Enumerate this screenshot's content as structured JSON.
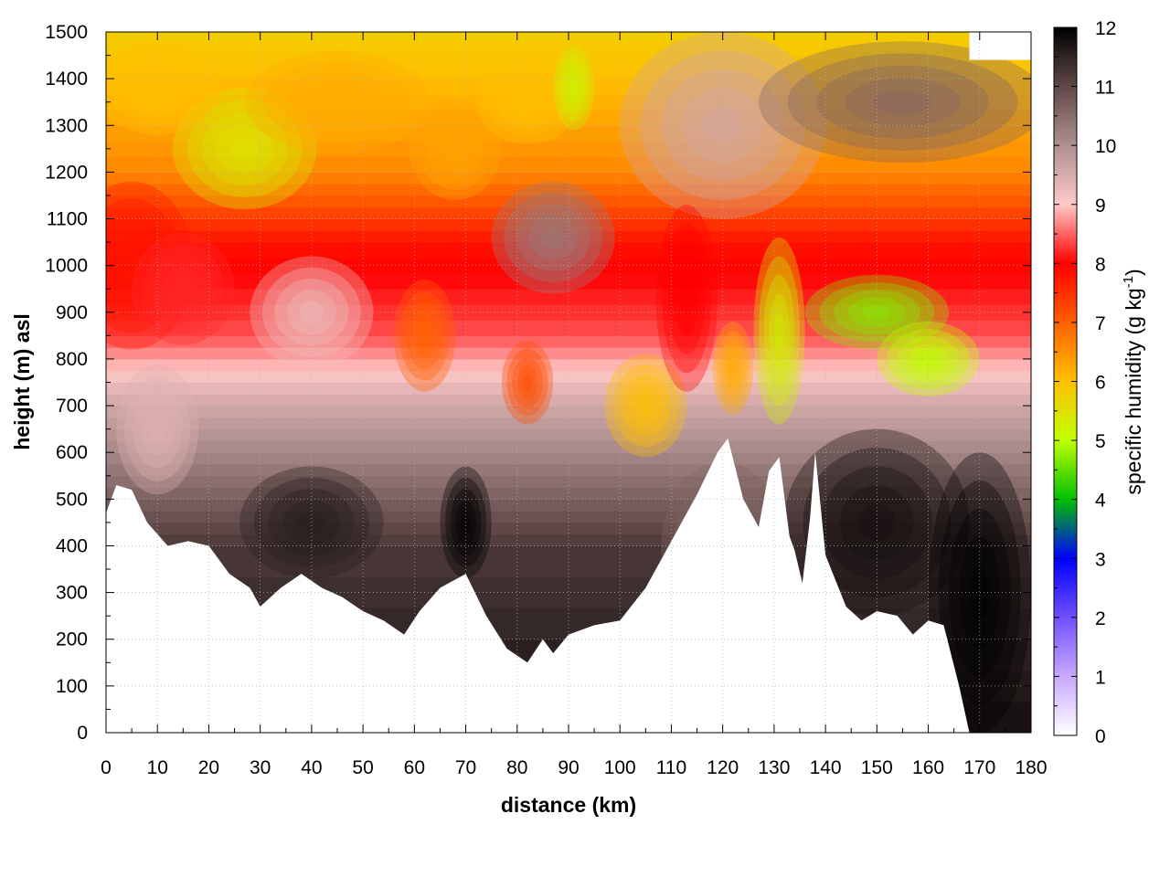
{
  "chart_data": {
    "type": "heatmap",
    "title": "",
    "xlabel": "distance (km)",
    "ylabel": "height (m) asl",
    "colorbar_label": "specific humidity (g kg",
    "colorbar_label_sup": "-1",
    "colorbar_label_close": ")",
    "xlim": [
      0,
      180
    ],
    "ylim": [
      0,
      1500
    ],
    "zlim": [
      0,
      12
    ],
    "x_ticks": [
      "0",
      "10",
      "20",
      "30",
      "40",
      "50",
      "60",
      "70",
      "80",
      "90",
      "100",
      "110",
      "120",
      "130",
      "140",
      "150",
      "160",
      "170",
      "180"
    ],
    "y_ticks": [
      "0",
      "100",
      "200",
      "300",
      "400",
      "500",
      "600",
      "700",
      "800",
      "900",
      "1000",
      "1100",
      "1200",
      "1300",
      "1400",
      "1500"
    ],
    "colorbar_ticks": [
      "0",
      "1",
      "2",
      "3",
      "4",
      "5",
      "6",
      "7",
      "8",
      "9",
      "10",
      "11",
      "12"
    ],
    "grid": true,
    "colormap": [
      {
        "value": 0,
        "color": "#ffffff"
      },
      {
        "value": 1,
        "color": "#c8a8ff"
      },
      {
        "value": 2,
        "color": "#7050ff"
      },
      {
        "value": 3,
        "color": "#0000ff"
      },
      {
        "value": 4,
        "color": "#00c000"
      },
      {
        "value": 5,
        "color": "#c0ff00"
      },
      {
        "value": 6,
        "color": "#ffc000"
      },
      {
        "value": 7,
        "color": "#ff6000"
      },
      {
        "value": 8,
        "color": "#ff0000"
      },
      {
        "value": 9,
        "color": "#ffc8c8"
      },
      {
        "value": 10,
        "color": "#b09090"
      },
      {
        "value": 11,
        "color": "#604848"
      },
      {
        "value": 12,
        "color": "#000000"
      }
    ],
    "terrain_height": [
      {
        "x": 0,
        "y": 470
      },
      {
        "x": 2,
        "y": 530
      },
      {
        "x": 5,
        "y": 520
      },
      {
        "x": 8,
        "y": 450
      },
      {
        "x": 12,
        "y": 400
      },
      {
        "x": 16,
        "y": 410
      },
      {
        "x": 20,
        "y": 400
      },
      {
        "x": 24,
        "y": 340
      },
      {
        "x": 28,
        "y": 310
      },
      {
        "x": 30,
        "y": 270
      },
      {
        "x": 34,
        "y": 310
      },
      {
        "x": 38,
        "y": 340
      },
      {
        "x": 42,
        "y": 310
      },
      {
        "x": 46,
        "y": 290
      },
      {
        "x": 50,
        "y": 260
      },
      {
        "x": 54,
        "y": 240
      },
      {
        "x": 58,
        "y": 210
      },
      {
        "x": 61,
        "y": 260
      },
      {
        "x": 65,
        "y": 310
      },
      {
        "x": 70,
        "y": 340
      },
      {
        "x": 74,
        "y": 250
      },
      {
        "x": 78,
        "y": 180
      },
      {
        "x": 82,
        "y": 150
      },
      {
        "x": 85,
        "y": 200
      },
      {
        "x": 87,
        "y": 170
      },
      {
        "x": 90,
        "y": 210
      },
      {
        "x": 95,
        "y": 230
      },
      {
        "x": 100,
        "y": 240
      },
      {
        "x": 105,
        "y": 310
      },
      {
        "x": 110,
        "y": 410
      },
      {
        "x": 115,
        "y": 510
      },
      {
        "x": 119,
        "y": 600
      },
      {
        "x": 121,
        "y": 630
      },
      {
        "x": 124,
        "y": 500
      },
      {
        "x": 127,
        "y": 440
      },
      {
        "x": 129,
        "y": 560
      },
      {
        "x": 131,
        "y": 590
      },
      {
        "x": 133,
        "y": 420
      },
      {
        "x": 134,
        "y": 390
      },
      {
        "x": 135.5,
        "y": 320
      },
      {
        "x": 137,
        "y": 460
      },
      {
        "x": 138,
        "y": 600
      },
      {
        "x": 140,
        "y": 380
      },
      {
        "x": 144,
        "y": 270
      },
      {
        "x": 147,
        "y": 240
      },
      {
        "x": 150,
        "y": 260
      },
      {
        "x": 154,
        "y": 250
      },
      {
        "x": 157,
        "y": 210
      },
      {
        "x": 160,
        "y": 240
      },
      {
        "x": 163,
        "y": 230
      },
      {
        "x": 166,
        "y": 100
      },
      {
        "x": 168,
        "y": 0
      },
      {
        "x": 180,
        "y": 0
      }
    ],
    "top_boundary": [
      {
        "x": 0,
        "y": 1500
      },
      {
        "x": 168,
        "y": 1500
      },
      {
        "x": 168,
        "y": 1440
      },
      {
        "x": 180,
        "y": 1440
      }
    ],
    "humidity_layers": [
      {
        "height": 0,
        "value": 11.8
      },
      {
        "height": 400,
        "value": 11.2
      },
      {
        "height": 550,
        "value": 10.4
      },
      {
        "height": 700,
        "value": 9.6
      },
      {
        "height": 850,
        "value": 8.4
      },
      {
        "height": 1050,
        "value": 7.8
      },
      {
        "height": 1200,
        "value": 6.6
      },
      {
        "height": 1400,
        "value": 6.0
      },
      {
        "height": 1500,
        "value": 5.8
      }
    ],
    "humidity_features": [
      {
        "x": 5,
        "y": 1000,
        "rx": 12,
        "ry": 180,
        "value": 7.8
      },
      {
        "x": 15,
        "y": 950,
        "rx": 10,
        "ry": 120,
        "value": 8.2
      },
      {
        "x": 27,
        "y": 1250,
        "rx": 14,
        "ry": 130,
        "value": 5.4
      },
      {
        "x": 10,
        "y": 1380,
        "rx": 12,
        "ry": 100,
        "value": 6.0
      },
      {
        "x": 45,
        "y": 1350,
        "rx": 18,
        "ry": 110,
        "value": 6.2
      },
      {
        "x": 40,
        "y": 900,
        "rx": 12,
        "ry": 120,
        "value": 9.2
      },
      {
        "x": 62,
        "y": 850,
        "rx": 6,
        "ry": 120,
        "value": 7.0
      },
      {
        "x": 68,
        "y": 1250,
        "rx": 9,
        "ry": 110,
        "value": 6.3
      },
      {
        "x": 82,
        "y": 1350,
        "rx": 10,
        "ry": 90,
        "value": 6.0
      },
      {
        "x": 91,
        "y": 1380,
        "rx": 4,
        "ry": 90,
        "value": 5.2
      },
      {
        "x": 82,
        "y": 750,
        "rx": 5,
        "ry": 90,
        "value": 7.2
      },
      {
        "x": 87,
        "y": 1060,
        "rx": 12,
        "ry": 120,
        "value": 10.3
      },
      {
        "x": 120,
        "y": 1300,
        "rx": 20,
        "ry": 200,
        "value": 9.6
      },
      {
        "x": 155,
        "y": 1350,
        "rx": 28,
        "ry": 130,
        "value": 10.6
      },
      {
        "x": 105,
        "y": 700,
        "rx": 8,
        "ry": 110,
        "value": 6.0
      },
      {
        "x": 113,
        "y": 930,
        "rx": 6,
        "ry": 200,
        "value": 8.0
      },
      {
        "x": 122,
        "y": 780,
        "rx": 4,
        "ry": 100,
        "value": 6.2
      },
      {
        "x": 131,
        "y": 860,
        "rx": 5,
        "ry": 200,
        "value": 5.2
      },
      {
        "x": 150,
        "y": 900,
        "rx": 14,
        "ry": 80,
        "value": 4.7
      },
      {
        "x": 160,
        "y": 800,
        "rx": 10,
        "ry": 80,
        "value": 5.0
      },
      {
        "x": 150,
        "y": 450,
        "rx": 18,
        "ry": 200,
        "value": 11.8
      },
      {
        "x": 170,
        "y": 300,
        "rx": 10,
        "ry": 300,
        "value": 12.0
      },
      {
        "x": 70,
        "y": 450,
        "rx": 5,
        "ry": 120,
        "value": 12.0
      },
      {
        "x": 40,
        "y": 450,
        "rx": 14,
        "ry": 120,
        "value": 11.6
      },
      {
        "x": 10,
        "y": 650,
        "rx": 8,
        "ry": 140,
        "value": 9.4
      },
      {
        "x": 120,
        "y": 400,
        "rx": 12,
        "ry": 180,
        "value": 10.6
      }
    ]
  }
}
